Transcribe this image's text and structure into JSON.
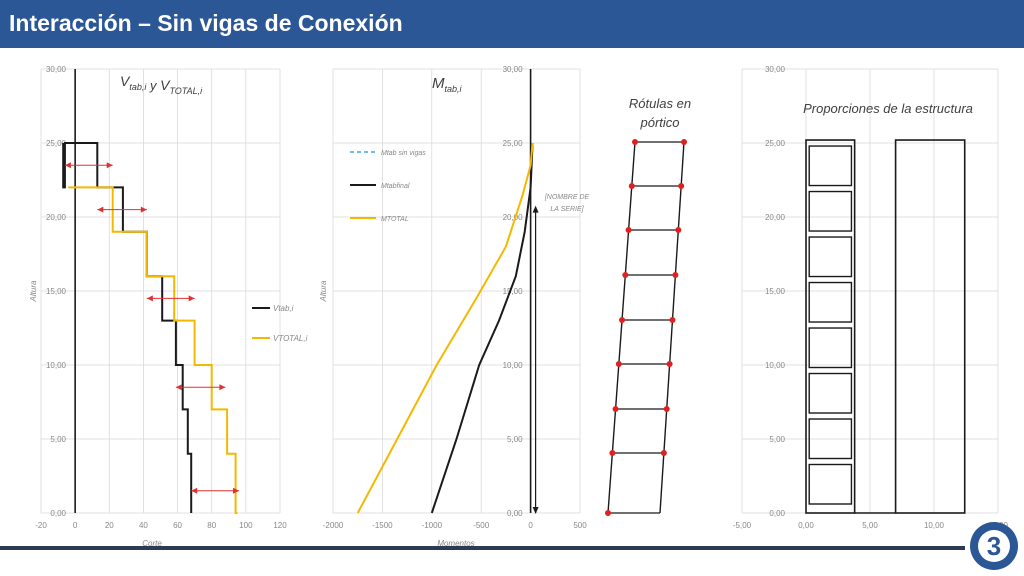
{
  "slide": {
    "title": "Interacción – Sin vigas de Conexión"
  },
  "colors": {
    "title_bar": "#2b5797",
    "series_black": "#1a1a1a",
    "series_yellow": "#f5b800",
    "series_dashed": "#3aaee0",
    "arrow_red": "#e03030",
    "hinge_red": "#e02020"
  },
  "logo": {
    "icon": "company-logo-icon",
    "text": "3"
  },
  "chart_data": [
    {
      "type": "line",
      "title_main": "V",
      "title_sub1": "tab,i",
      "title_join": "y",
      "title_main2": "V",
      "title_sub2": "TOTAL,i",
      "xlabel": "Corte",
      "ylabel": "Altura",
      "xlim": [
        -20,
        120
      ],
      "ylim": [
        0,
        30
      ],
      "xticks": [
        "-20",
        "0",
        "20",
        "40",
        "60",
        "80",
        "100",
        "120"
      ],
      "xtick_values": [
        -20,
        0,
        20,
        40,
        60,
        80,
        100,
        120
      ],
      "yticks": [
        "0,00",
        "5,00",
        "10,00",
        "15,00",
        "20,00",
        "25,00",
        "30,00"
      ],
      "ytick_values": [
        0,
        5,
        10,
        15,
        20,
        25,
        30
      ],
      "series": [
        {
          "name": "Vtab,i",
          "color": "#1a1a1a",
          "x": [
            68,
            68,
            66,
            66,
            63,
            63,
            59,
            59,
            51,
            51,
            42,
            42,
            28,
            28,
            13,
            13,
            -6,
            -6,
            -7,
            -7
          ],
          "y": [
            0,
            4,
            4,
            7,
            7,
            10,
            10,
            13,
            13,
            16,
            16,
            19,
            19,
            22,
            22,
            25,
            25,
            22,
            22,
            25
          ]
        },
        {
          "name": "VTOTAL,i",
          "color": "#f5b800",
          "x": [
            95,
            94,
            94,
            89,
            89,
            80,
            80,
            70,
            70,
            58,
            58,
            42,
            42,
            22,
            22,
            -4
          ],
          "y": [
            0,
            0,
            4,
            4,
            7,
            7,
            10,
            10,
            13,
            13,
            16,
            16,
            19,
            19,
            22,
            22
          ]
        }
      ],
      "arrows": [
        {
          "y": 23.5,
          "x1": -6,
          "x2": 22
        },
        {
          "y": 20.5,
          "x1": 13,
          "x2": 42
        },
        {
          "y": 14.5,
          "x1": 42,
          "x2": 70
        },
        {
          "y": 8.5,
          "x1": 59,
          "x2": 88
        },
        {
          "y": 1.5,
          "x1": 68,
          "x2": 96
        }
      ],
      "legend": [
        "Vtab,i",
        "VTOTAL,i"
      ],
      "legend_placement": "right"
    },
    {
      "type": "line",
      "title_main": "M",
      "title_sub": "tab,i",
      "xlabel": "Momentos",
      "ylabel": "Altura",
      "xlim": [
        -2000,
        500
      ],
      "ylim": [
        0,
        30
      ],
      "xticks": [
        "-2000",
        "-1500",
        "-1000",
        "-500",
        "0",
        "500"
      ],
      "xtick_values": [
        -2000,
        -1500,
        -1000,
        -500,
        0,
        500
      ],
      "yticks": [
        "0,00",
        "5,00",
        "10,00",
        "15,00",
        "20,00",
        "25,00",
        "30,00"
      ],
      "ytick_values": [
        0,
        5,
        10,
        15,
        20,
        25,
        30
      ],
      "series": [
        {
          "name": "Mtab sin vigas",
          "color": "#3aaee0",
          "dashed": true,
          "x": [
            0,
            0
          ],
          "y": [
            0,
            0
          ]
        },
        {
          "name": "Mtabfinal",
          "color": "#1a1a1a",
          "x": [
            -1000,
            -750,
            -520,
            -320,
            -150,
            -60,
            0,
            20
          ],
          "y": [
            0,
            5,
            10,
            13,
            16,
            19,
            22,
            25
          ]
        },
        {
          "name": "MTOTAL",
          "color": "#f5b800",
          "x": [
            -1750,
            -1350,
            -950,
            -550,
            -250,
            -80,
            0,
            20
          ],
          "y": [
            0,
            5,
            10,
            14.5,
            18,
            21.5,
            23.5,
            25
          ]
        }
      ],
      "annotation": [
        "[NOMBRE DE",
        "LA SERIE]"
      ],
      "legend": [
        "Mtab sin vigas",
        "Mtabfinal",
        "MTOTAL"
      ],
      "legend_placement": "left"
    },
    {
      "type": "diagram",
      "title": [
        "Rótulas en",
        "pórtico"
      ],
      "hinge_count": 17
    },
    {
      "type": "diagram",
      "title": "Proporciones de la estructura",
      "xlim": [
        -5,
        15
      ],
      "ylim": [
        0,
        30
      ],
      "xticks": [
        "-5,00",
        "0,00",
        "5,00",
        "10,00",
        "15,00"
      ],
      "xtick_values": [
        -5,
        0,
        5,
        10,
        15
      ],
      "yticks": [
        "0,00",
        "5,00",
        "10,00",
        "15,00",
        "20,00",
        "25,00",
        "30,00"
      ],
      "ytick_values": [
        0,
        5,
        10,
        15,
        20,
        25,
        30
      ],
      "rect_outer": [
        [
          0,
          25.2,
          3.8,
          0
        ],
        [
          7,
          25.2,
          12.4,
          0
        ]
      ],
      "floors": 8
    }
  ]
}
